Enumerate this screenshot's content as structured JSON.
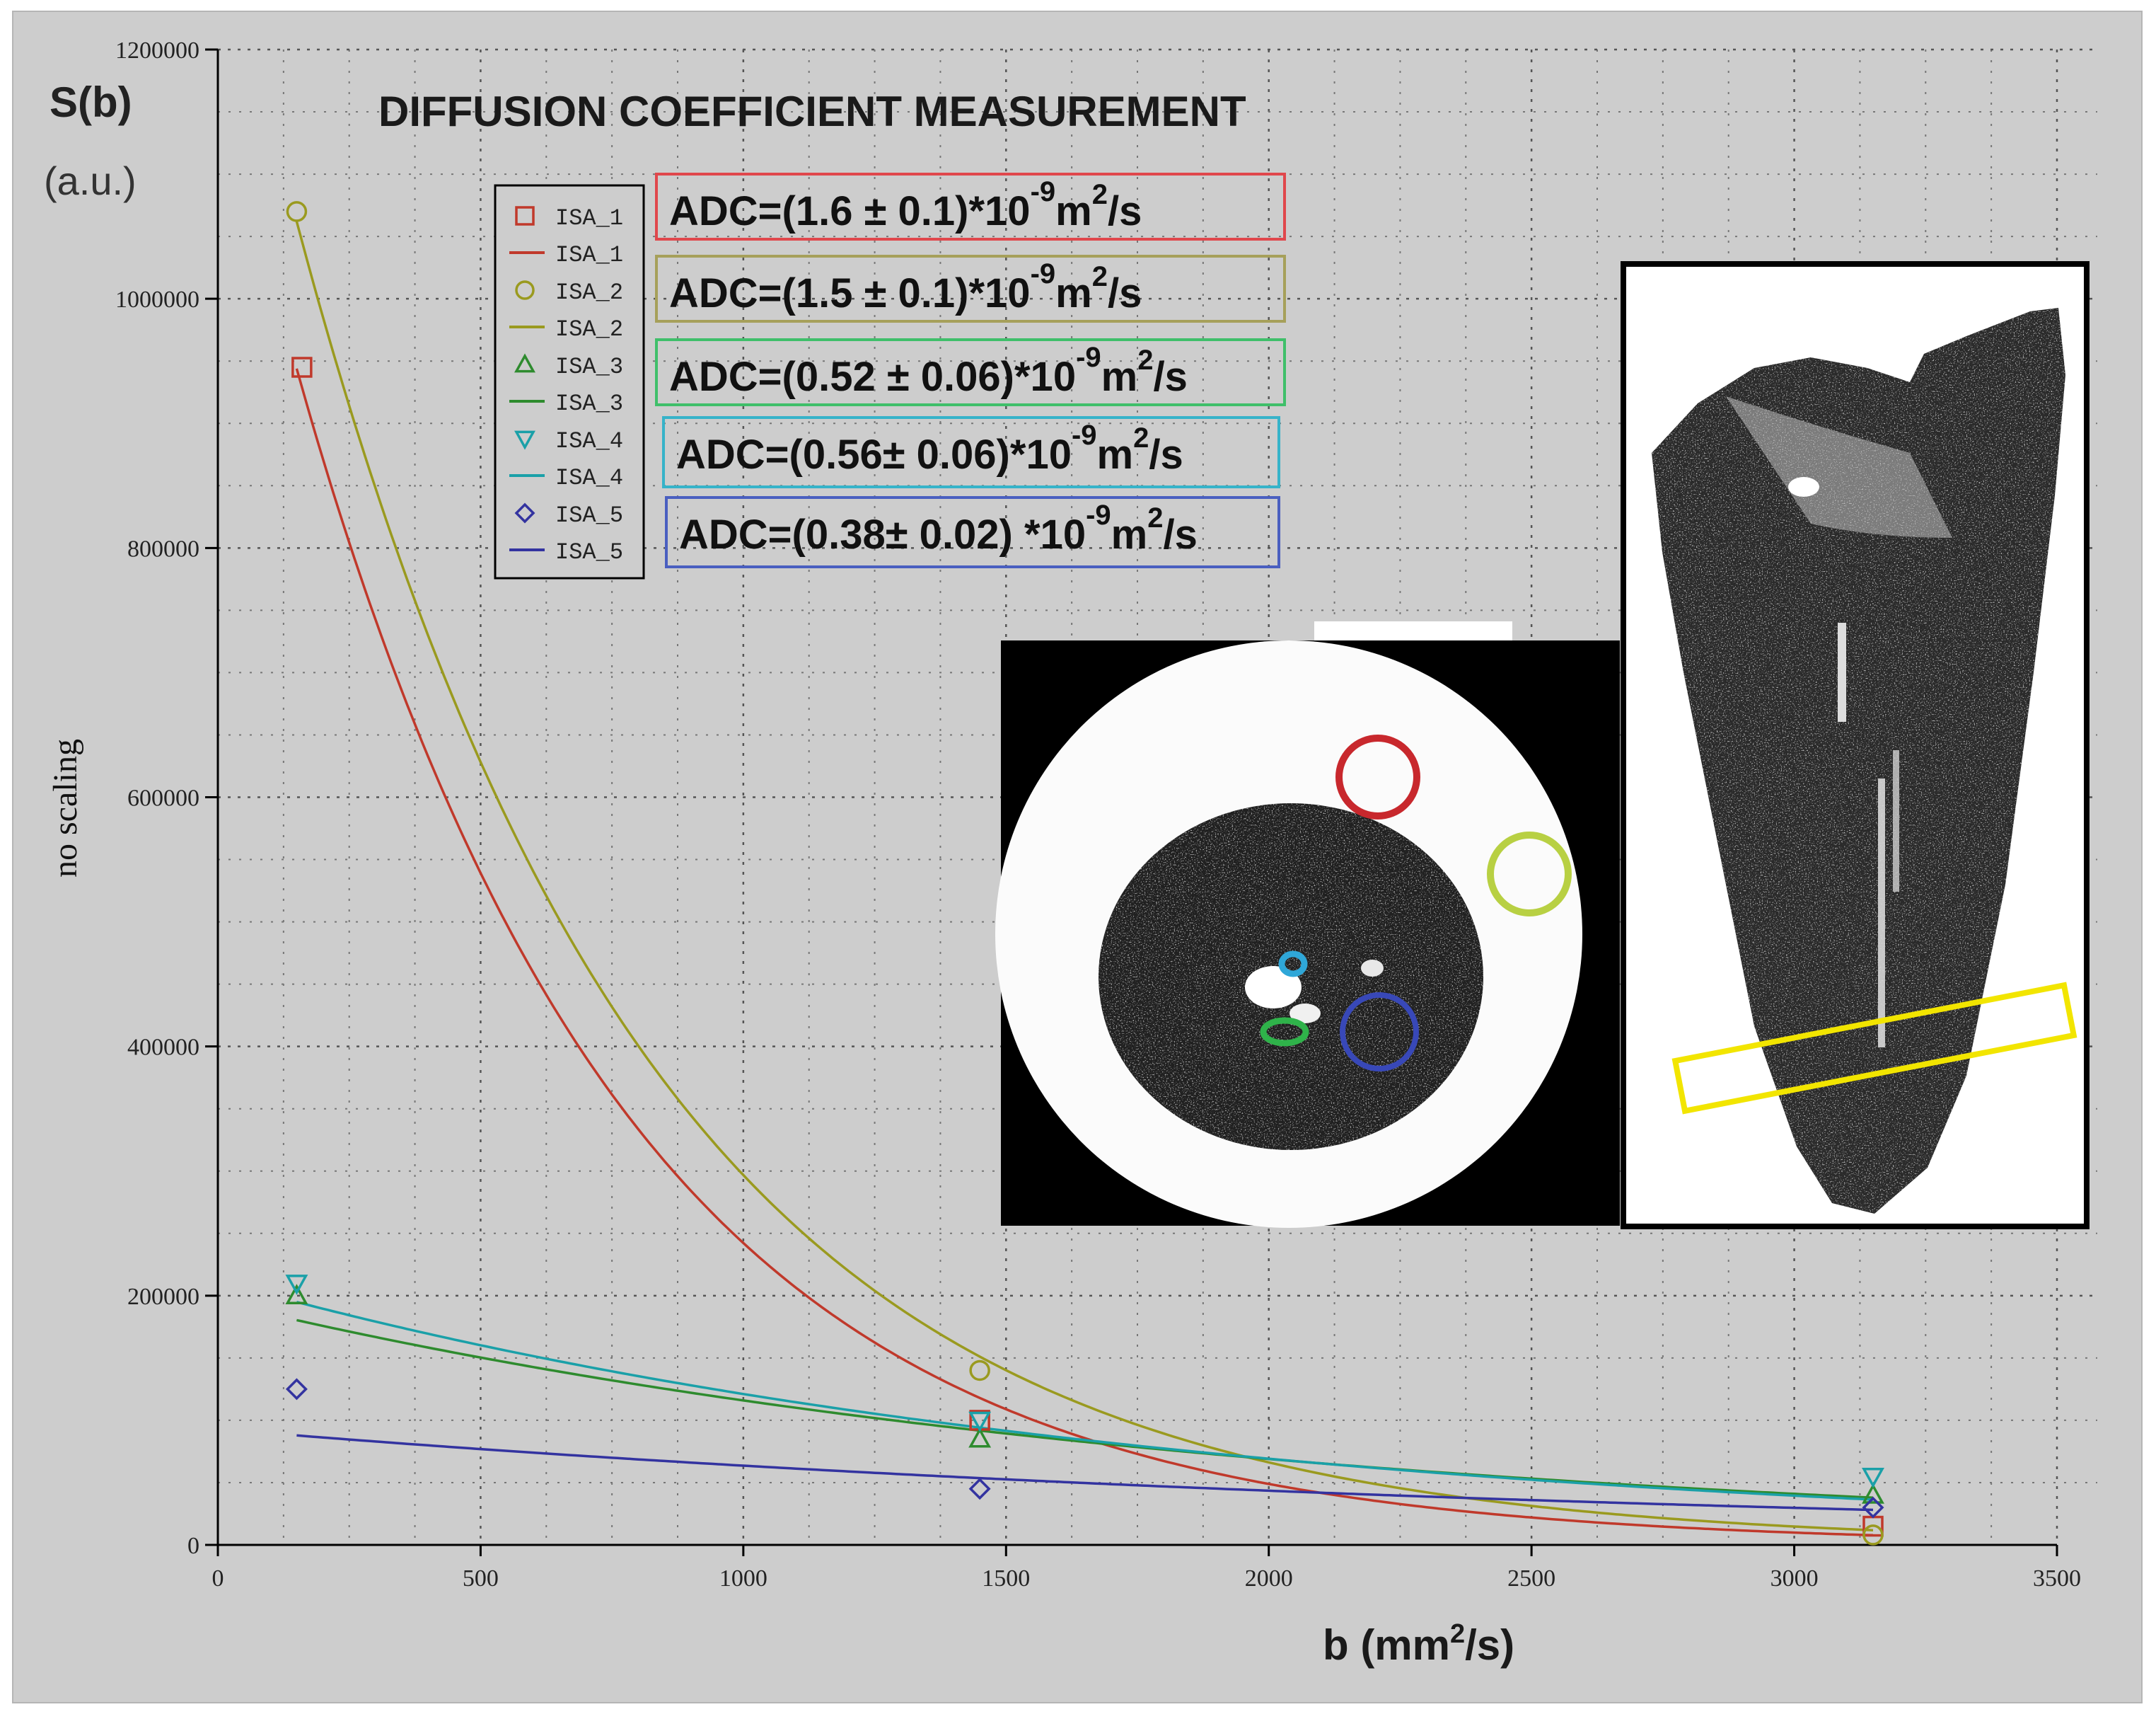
{
  "chart_data": {
    "type": "scatter",
    "title": "DIFFUSION COEFFICIENT MEASUREMENT",
    "ylabel_main": "S(b)",
    "ylabel_unit": "(a.u.)",
    "ylabel_rotated": "no scaling",
    "xlabel": "b (mm²/s)",
    "xlim": [
      0,
      3500
    ],
    "ylim": [
      0,
      1200000
    ],
    "x_ticks": [
      0,
      500,
      1000,
      1500,
      2000,
      2500,
      3000,
      3500
    ],
    "y_ticks": [
      0,
      200000,
      400000,
      600000,
      800000,
      1000000,
      1200000
    ],
    "grid": true,
    "legend_position": "top-left",
    "series": [
      {
        "name": "ISA_1",
        "color": "#c0392b",
        "marker": "square",
        "x": [
          160,
          1450,
          3150
        ],
        "y": [
          945000,
          100000,
          15000
        ],
        "fit": {
          "S0": 1200000,
          "adc": 0.0016
        },
        "adc_text": "ADC=(1.6 ± 0.1)*10",
        "adc_unit": "m",
        "adc_exp": "-9",
        "adc_sq": "2",
        "adc_tail": "/s",
        "box_color": "#e0474c"
      },
      {
        "name": "ISA_2",
        "color": "#9a9a1f",
        "marker": "circle",
        "x": [
          150,
          1450,
          3150
        ],
        "y": [
          1070000,
          140000,
          8000
        ],
        "fit": {
          "S0": 1330000,
          "adc": 0.0015
        },
        "adc_text": "ADC=(1.5 ± 0.1)*10",
        "adc_unit": "m",
        "adc_exp": "-9",
        "adc_sq": "2",
        "adc_tail": "/s",
        "box_color": "#a6a05a"
      },
      {
        "name": "ISA_3",
        "color": "#2e8b2e",
        "marker": "triangle-up",
        "x": [
          150,
          1450,
          3150
        ],
        "y": [
          200000,
          85000,
          40000
        ],
        "fit": {
          "S0": 195000,
          "adc": 0.00052
        },
        "adc_text": "ADC=(0.52 ± 0.06)*10",
        "adc_unit": "m",
        "adc_exp": "-9",
        "adc_sq": "2",
        "adc_tail": "/s",
        "box_color": "#3fbf6a"
      },
      {
        "name": "ISA_4",
        "color": "#1aa0a8",
        "marker": "triangle-down",
        "x": [
          150,
          1450,
          3150
        ],
        "y": [
          210000,
          100000,
          55000
        ],
        "fit": {
          "S0": 212000,
          "adc": 0.00056
        },
        "adc_text": "ADC=(0.56± 0.06)*10",
        "adc_unit": "m",
        "adc_exp": "-9",
        "adc_sq": "2",
        "adc_tail": "/s",
        "box_color": "#36b3c9"
      },
      {
        "name": "ISA_5",
        "color": "#3333a0",
        "marker": "diamond",
        "x": [
          150,
          1450,
          3150
        ],
        "y": [
          125000,
          45000,
          30000
        ],
        "fit": {
          "S0": 93000,
          "adc": 0.00038
        },
        "adc_text": "ADC=(0.38± 0.02) *10",
        "adc_unit": "m",
        "adc_exp": "-9",
        "adc_sq": "2",
        "adc_tail": "/s",
        "box_color": "#4a5fc0"
      }
    ],
    "insets": {
      "axial": {
        "roi_colors": [
          "#c8282d",
          "#b8d043",
          "#2fa7d8",
          "#2fb24a",
          "#3848b8"
        ]
      },
      "coronal": {
        "slice_color": "#f2e500"
      }
    }
  }
}
